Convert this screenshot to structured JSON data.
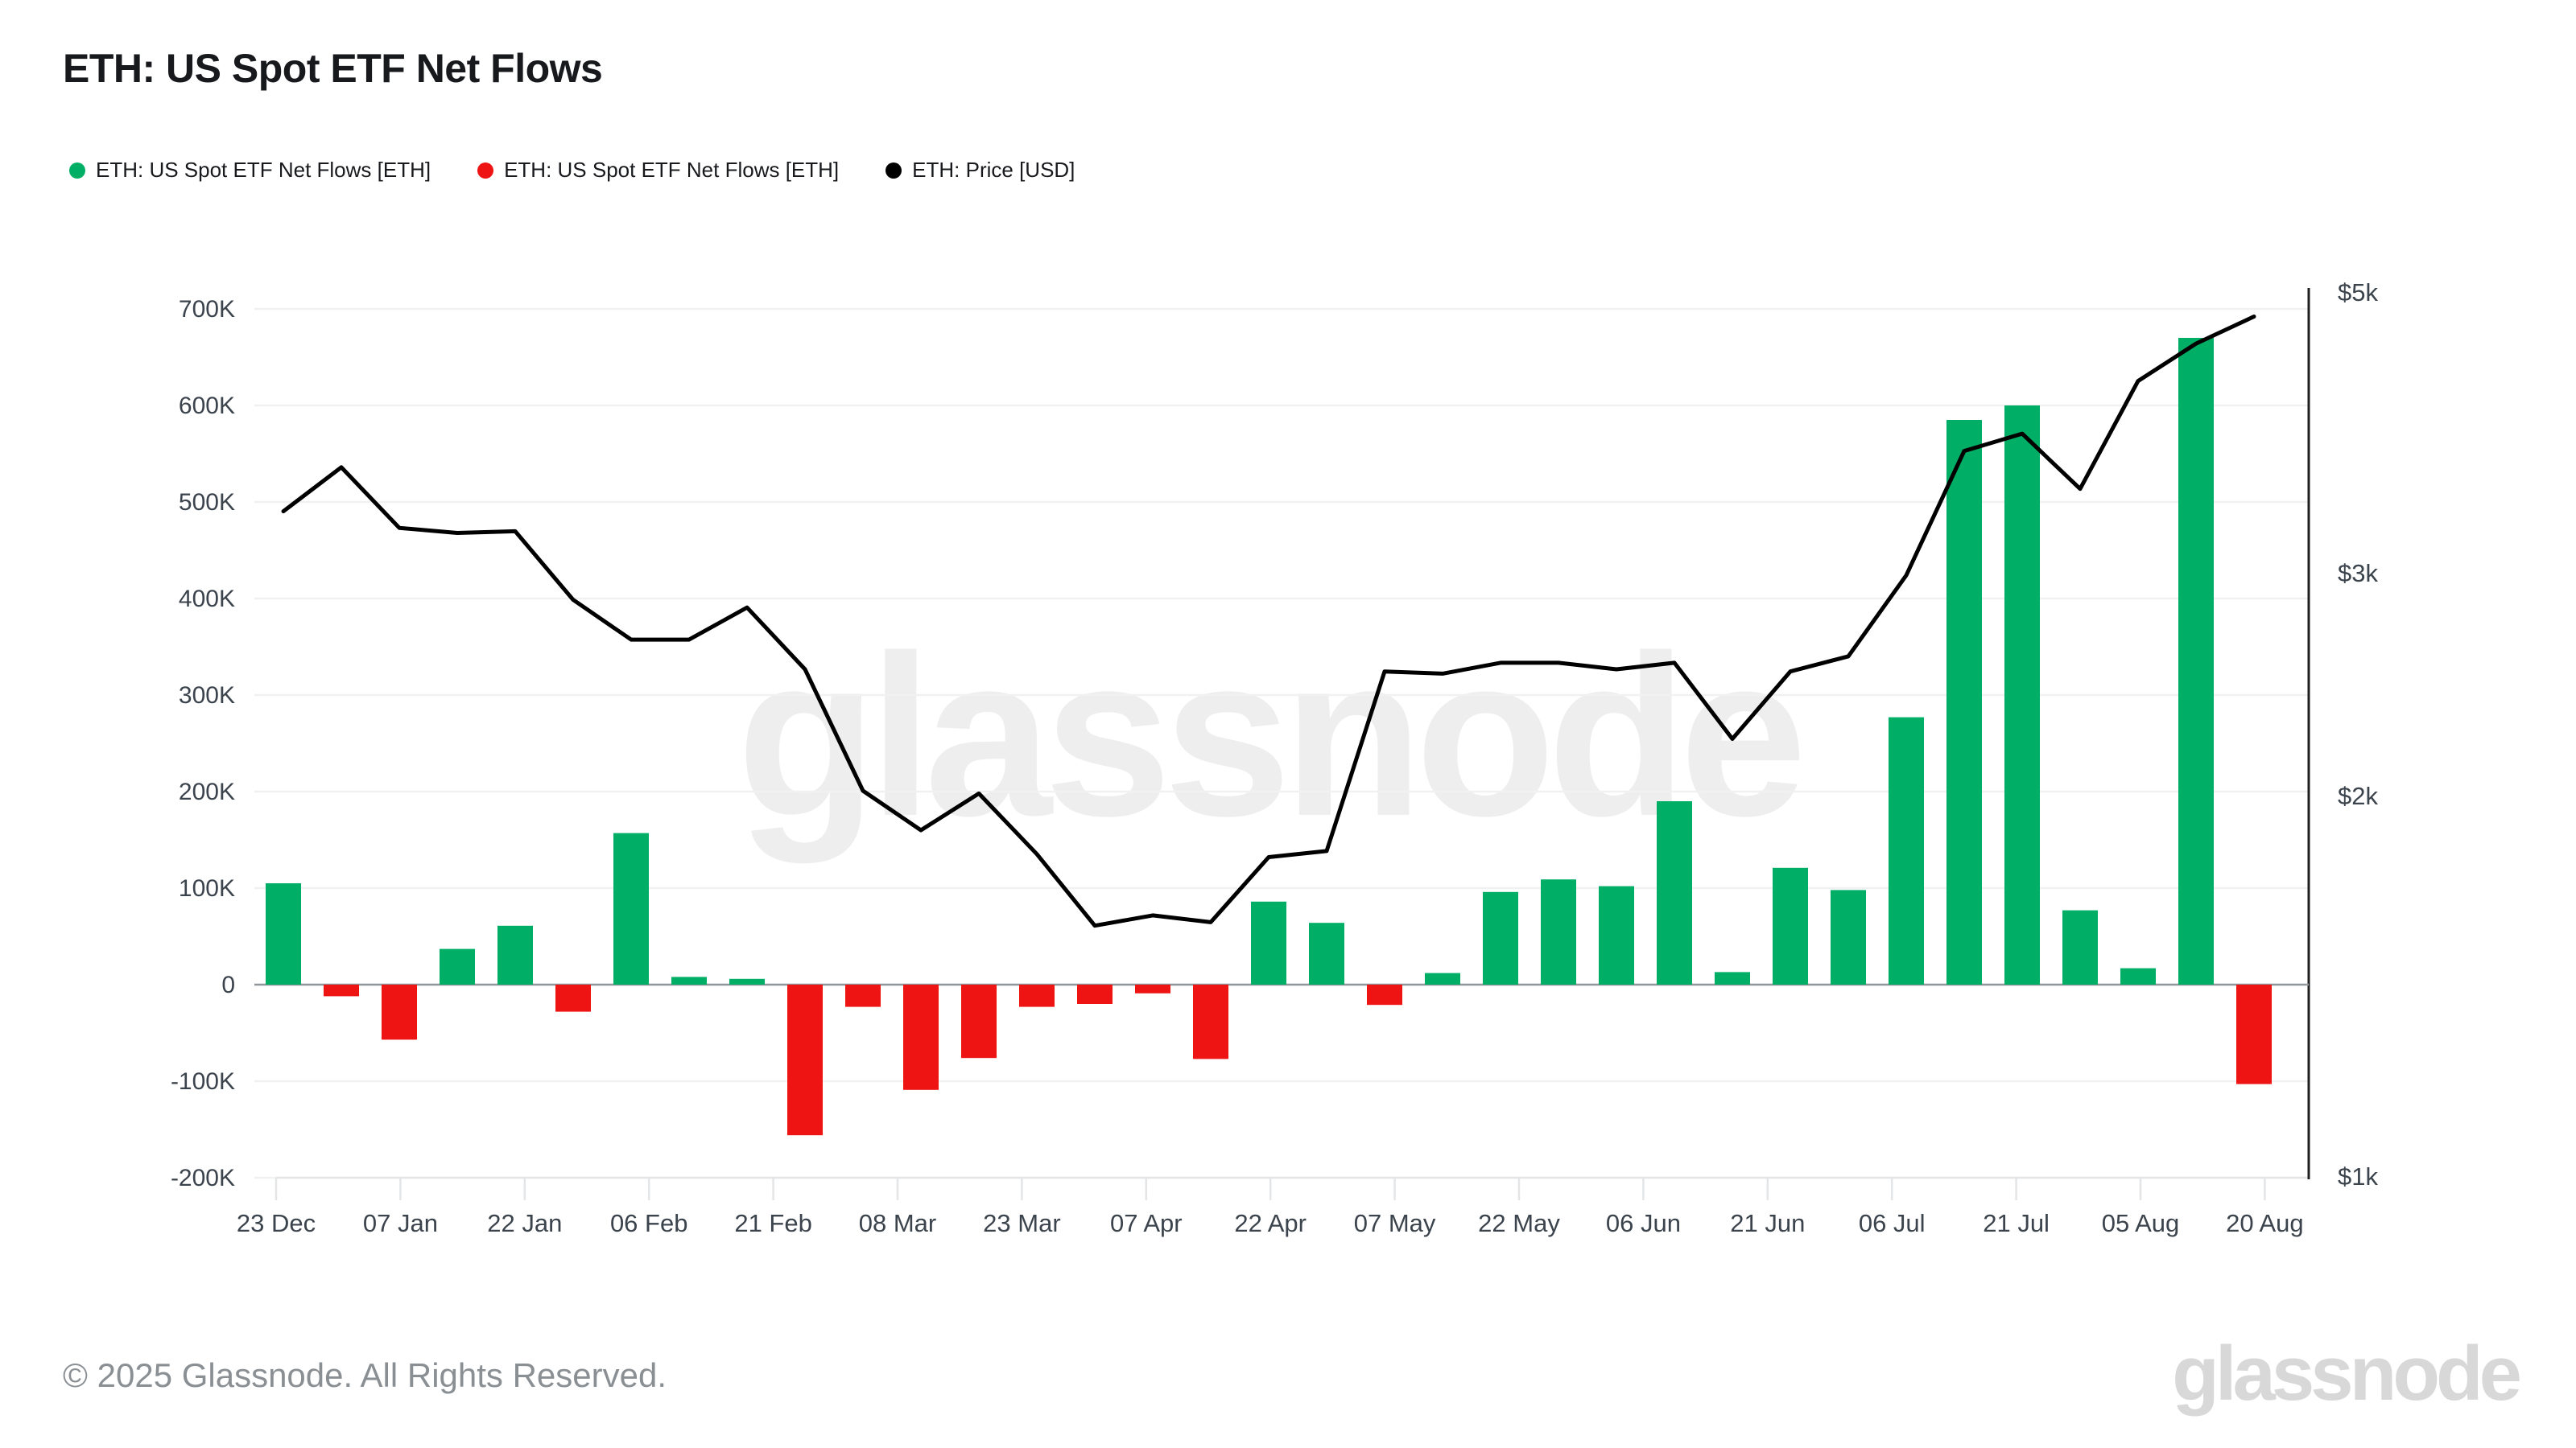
{
  "title": "ETH: US Spot ETF Net Flows",
  "legend": {
    "items": [
      {
        "label": "ETH: US Spot ETF Net Flows [ETH]",
        "color": "#00ae66"
      },
      {
        "label": "ETH: US Spot ETF Net Flows [ETH]",
        "color": "#ee1414"
      },
      {
        "label": "ETH: Price [USD]",
        "color": "#000000"
      }
    ]
  },
  "watermark": "glassnode",
  "footer": {
    "copyright": "© 2025 Glassnode. All Rights Reserved.",
    "brand_wordmark": "glassnode"
  },
  "chart_data": {
    "type": "bar+line",
    "title": "ETH: US Spot ETF Net Flows",
    "x_tick_labels": [
      "23 Dec",
      "07 Jan",
      "22 Jan",
      "06 Feb",
      "21 Feb",
      "08 Mar",
      "23 Mar",
      "07 Apr",
      "22 Apr",
      "07 May",
      "22 May",
      "06 Jun",
      "21 Jun",
      "06 Jul",
      "21 Jul",
      "05 Aug",
      "20 Aug"
    ],
    "series": [
      {
        "name": "ETH: US Spot ETF Net Flows [ETH]",
        "type": "bar",
        "unit": "thousand ETH",
        "positive_color": "#00ae66",
        "negative_color": "#ee1414",
        "values": [
          105,
          -12,
          -57,
          37,
          61,
          -28,
          157,
          8,
          6,
          -156,
          -23,
          -109,
          -76,
          -23,
          -20,
          -9,
          -77,
          86,
          64,
          -21,
          12,
          96,
          109,
          102,
          190,
          13,
          121,
          98,
          277,
          585,
          600,
          77,
          17,
          670,
          -103
        ]
      },
      {
        "name": "ETH: Price [USD]",
        "type": "line",
        "unit": "thousand USD",
        "color": "#000000",
        "values": [
          3.36,
          3.64,
          3.26,
          3.23,
          3.24,
          2.86,
          2.66,
          2.66,
          2.82,
          2.52,
          2.02,
          1.88,
          2.01,
          1.8,
          1.58,
          1.61,
          1.59,
          1.79,
          1.81,
          2.51,
          2.5,
          2.55,
          2.55,
          2.52,
          2.55,
          2.22,
          2.51,
          2.58,
          2.99,
          3.75,
          3.87,
          3.5,
          4.26,
          4.56,
          4.79
        ]
      }
    ],
    "left_axis": {
      "tick_labels": [
        "700K",
        "600K",
        "500K",
        "400K",
        "300K",
        "200K",
        "100K",
        "0",
        "-100K",
        "-200K"
      ],
      "tick_values_thousand": [
        700,
        600,
        500,
        400,
        300,
        200,
        100,
        0,
        -100,
        -200
      ],
      "scale": "linear"
    },
    "right_axis": {
      "tick_labels": [
        "$5k",
        "$3k",
        "$2k",
        "$1k"
      ],
      "tick_values_thousand_usd": [
        5,
        3,
        2,
        1
      ],
      "scale": "log"
    },
    "grid": "horizontal-only",
    "legend_position": "top-left",
    "colors": {
      "positive_bar": "#00ae66",
      "negative_bar": "#ee1414",
      "price_line": "#000000",
      "gridline": "#f0f1f2",
      "zero_line": "#8f969c",
      "axis_text": "#3b434c"
    }
  }
}
